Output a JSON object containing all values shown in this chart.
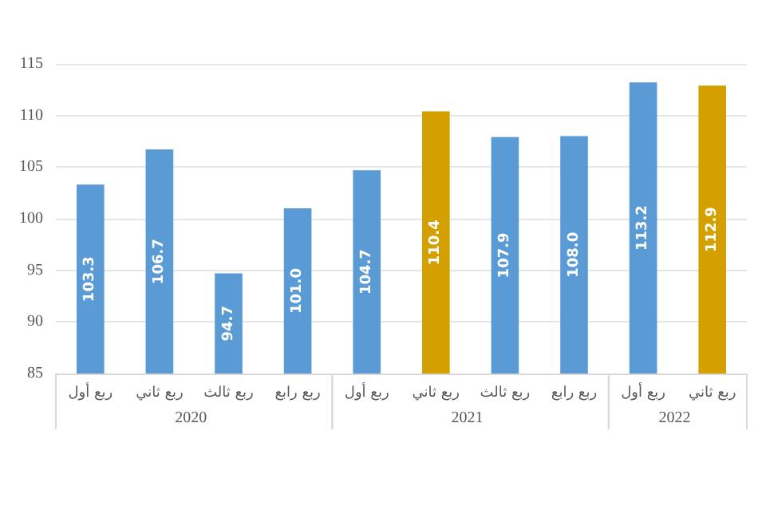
{
  "chart_data": {
    "type": "bar",
    "categories": [
      "ربع أول",
      "ربع ثاني",
      "ربع ثالث",
      "ربع رابع",
      "ربع أول",
      "ربع ثاني",
      "ربع ثالث",
      "ربع رابع",
      "ربع أول",
      "ربع ثاني"
    ],
    "values": [
      103.3,
      106.7,
      94.7,
      101.0,
      104.7,
      110.4,
      107.9,
      108.0,
      113.2,
      112.9
    ],
    "colors": [
      "#5b9bd5",
      "#5b9bd5",
      "#5b9bd5",
      "#5b9bd5",
      "#5b9bd5",
      "#d4a000",
      "#5b9bd5",
      "#5b9bd5",
      "#5b9bd5",
      "#d4a000"
    ],
    "value_labels": [
      "103.3",
      "106.7",
      "94.7",
      "101.0",
      "104.7",
      "110.4",
      "107.9",
      "108.0",
      "113.2",
      "112.9"
    ],
    "annotations": [
      "2020",
      "2021",
      "2022"
    ],
    "ylim": [
      85,
      115
    ],
    "yticks": [
      85,
      90,
      95,
      100,
      105,
      110,
      115
    ],
    "grid": "y"
  }
}
